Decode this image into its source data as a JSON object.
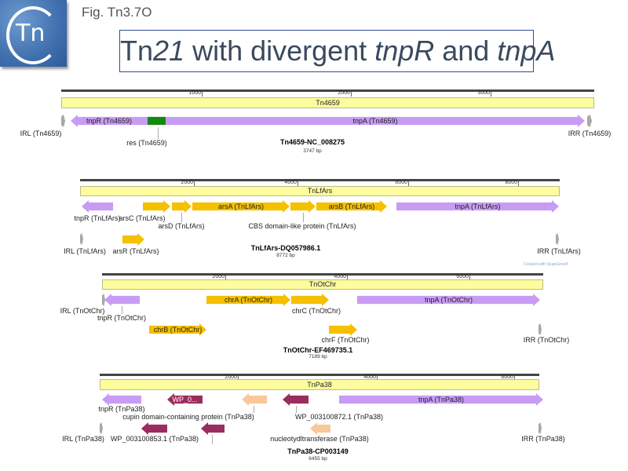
{
  "logo": {
    "text": "Tn"
  },
  "figure_label": "Fig. Tn3.7O",
  "title": {
    "parts": [
      "Tn",
      "21",
      " with divergent ",
      "tnpR",
      " and ",
      "tnpA"
    ]
  },
  "colors": {
    "tnp": "#c89cf4",
    "ars": "#f5c000",
    "hyp": "#9b2d5e",
    "enzyme": "#f8c89a",
    "res": "#128a12",
    "ir": "#a8a8a8",
    "track": "#fdfd9e"
  },
  "watermark": "Created with SnapGene®",
  "maps": [
    {
      "name": "Tn4659-NC_008275",
      "length": "3747 bp",
      "track_label": "Tn4659",
      "ruler_ticks": [
        "1000",
        "2000",
        "3000"
      ],
      "features": [
        {
          "label": "IRL (Tn4659)",
          "color": "ir"
        },
        {
          "label": "tnpR (Tn4659)",
          "color": "tnp"
        },
        {
          "label": "res (Tn4659)",
          "color": "res"
        },
        {
          "label": "tnpA (Tn4659)",
          "color": "tnp"
        },
        {
          "label": "IRR (Tn4659)",
          "color": "ir"
        }
      ]
    },
    {
      "name": "TnLfArs-DQ057986.1",
      "length": "8772 bp",
      "track_label": "TnLfArs",
      "ruler_ticks": [
        "2000",
        "4000",
        "6000",
        "8000"
      ],
      "features": [
        {
          "label": "tnpR (TnLfArs)",
          "color": "tnp"
        },
        {
          "label": "arsC (TnLfArs)",
          "color": "ars"
        },
        {
          "label": "arsD (TnLfArs)",
          "color": "ars"
        },
        {
          "label": "arsA (TnLfArs)",
          "color": "ars"
        },
        {
          "label": "CBS domain-like protein (TnLfArs)",
          "color": "ars"
        },
        {
          "label": "arsB (TnLfArs)",
          "color": "ars"
        },
        {
          "label": "tnpA (TnLfArs)",
          "color": "tnp"
        },
        {
          "label": "IRL (TnLfArs)",
          "color": "ir"
        },
        {
          "label": "arsR (TnLfArs)",
          "color": "ars"
        },
        {
          "label": "IRR (TnLfArs)",
          "color": "ir"
        }
      ]
    },
    {
      "name": "TnOtChr-EF469735.1",
      "length": "7189 bp",
      "track_label": "TnOtChr",
      "ruler_ticks": [
        "2000",
        "4000",
        "6000"
      ],
      "features": [
        {
          "label": "IRL (TnOtChr)",
          "color": "ir"
        },
        {
          "label": "tnpR (TnOtChr)",
          "color": "tnp"
        },
        {
          "label": "chrA (TnOtChr)",
          "color": "ars"
        },
        {
          "label": "chrC (TnOtChr)",
          "color": "ars"
        },
        {
          "label": "tnpA (TnOtChr)",
          "color": "tnp"
        },
        {
          "label": "chrB (TnOtChr)",
          "color": "ars"
        },
        {
          "label": "chrF (TnOtChr)",
          "color": "ars"
        },
        {
          "label": "IRR (TnOtChr)",
          "color": "ir"
        }
      ]
    },
    {
      "name": "TnPa38-CP003149",
      "length": "6455 bp",
      "track_label": "TnPa38",
      "ruler_ticks": [
        "2000",
        "4000",
        "6000"
      ],
      "features": [
        {
          "label": "tnpR (TnPa38)",
          "color": "tnp"
        },
        {
          "label": "WP_0...",
          "color": "hyp"
        },
        {
          "label": "cupin domain-containing protein (TnPa38)",
          "color": "enzyme"
        },
        {
          "label": "WP_003100872.1 (TnPa38)",
          "color": "hyp"
        },
        {
          "label": "tnpA (TnPa38)",
          "color": "tnp"
        },
        {
          "label": "IRL (TnPa38)",
          "color": "ir"
        },
        {
          "label": "WP_003100853.1 (TnPa38)",
          "color": "hyp"
        },
        {
          "label": "",
          "color": "hyp"
        },
        {
          "label": "nucleotydltransferase (TnPa38)",
          "color": "enzyme"
        },
        {
          "label": "IRR (TnPa38)",
          "color": "ir"
        }
      ]
    }
  ]
}
